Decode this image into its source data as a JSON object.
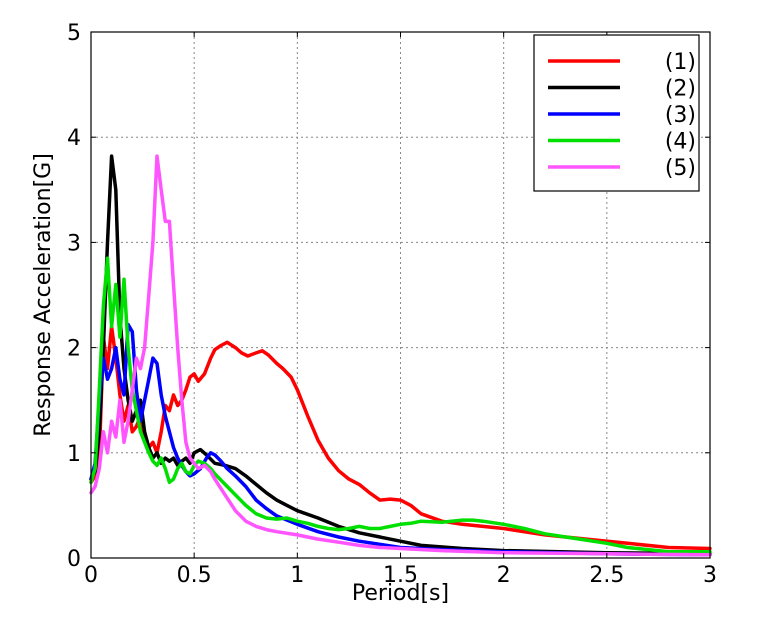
{
  "chart_data": {
    "type": "line",
    "title": "",
    "xlabel": "Period[s]",
    "ylabel": "Response Acceleration[G]",
    "xlim": [
      0,
      3
    ],
    "ylim": [
      0,
      5
    ],
    "xticks": [
      0,
      0.5,
      1,
      1.5,
      2,
      2.5,
      3
    ],
    "xtick_labels": [
      "0",
      "0.5",
      "1",
      "1.5",
      "2",
      "2.5",
      "3"
    ],
    "yticks": [
      0,
      1,
      2,
      3,
      4,
      5
    ],
    "ytick_labels": [
      "0",
      "1",
      "2",
      "3",
      "4",
      "5"
    ],
    "grid": true,
    "legend_position": "top-right",
    "series": [
      {
        "name": "(1)",
        "color": "#ff0000",
        "points": [
          [
            0,
            0.72
          ],
          [
            0.02,
            0.78
          ],
          [
            0.04,
            0.95
          ],
          [
            0.06,
            2.1
          ],
          [
            0.08,
            1.8
          ],
          [
            0.1,
            2.2
          ],
          [
            0.12,
            1.9
          ],
          [
            0.14,
            1.55
          ],
          [
            0.16,
            1.3
          ],
          [
            0.18,
            1.45
          ],
          [
            0.2,
            1.2
          ],
          [
            0.22,
            1.25
          ],
          [
            0.24,
            1.35
          ],
          [
            0.26,
            1.15
          ],
          [
            0.28,
            1.05
          ],
          [
            0.3,
            1.1
          ],
          [
            0.32,
            1.0
          ],
          [
            0.34,
            1.2
          ],
          [
            0.36,
            1.45
          ],
          [
            0.38,
            1.4
          ],
          [
            0.4,
            1.55
          ],
          [
            0.42,
            1.45
          ],
          [
            0.44,
            1.5
          ],
          [
            0.46,
            1.6
          ],
          [
            0.48,
            1.72
          ],
          [
            0.5,
            1.75
          ],
          [
            0.52,
            1.68
          ],
          [
            0.55,
            1.75
          ],
          [
            0.58,
            1.9
          ],
          [
            0.6,
            1.98
          ],
          [
            0.63,
            2.02
          ],
          [
            0.66,
            2.05
          ],
          [
            0.7,
            2.0
          ],
          [
            0.73,
            1.95
          ],
          [
            0.76,
            1.92
          ],
          [
            0.8,
            1.95
          ],
          [
            0.83,
            1.97
          ],
          [
            0.86,
            1.93
          ],
          [
            0.9,
            1.85
          ],
          [
            0.93,
            1.8
          ],
          [
            0.97,
            1.72
          ],
          [
            1.0,
            1.6
          ],
          [
            1.05,
            1.35
          ],
          [
            1.1,
            1.12
          ],
          [
            1.15,
            0.95
          ],
          [
            1.2,
            0.83
          ],
          [
            1.25,
            0.75
          ],
          [
            1.3,
            0.7
          ],
          [
            1.35,
            0.62
          ],
          [
            1.4,
            0.55
          ],
          [
            1.45,
            0.56
          ],
          [
            1.5,
            0.55
          ],
          [
            1.55,
            0.5
          ],
          [
            1.6,
            0.42
          ],
          [
            1.7,
            0.35
          ],
          [
            1.8,
            0.32
          ],
          [
            1.9,
            0.3
          ],
          [
            2.0,
            0.28
          ],
          [
            2.2,
            0.22
          ],
          [
            2.4,
            0.18
          ],
          [
            2.6,
            0.14
          ],
          [
            2.8,
            0.1
          ],
          [
            3.0,
            0.09
          ]
        ]
      },
      {
        "name": "(2)",
        "color": "#000000",
        "points": [
          [
            0,
            0.75
          ],
          [
            0.02,
            0.82
          ],
          [
            0.04,
            1.2
          ],
          [
            0.06,
            2.0
          ],
          [
            0.08,
            3.0
          ],
          [
            0.1,
            3.82
          ],
          [
            0.12,
            3.5
          ],
          [
            0.14,
            2.3
          ],
          [
            0.16,
            1.8
          ],
          [
            0.18,
            1.5
          ],
          [
            0.2,
            1.3
          ],
          [
            0.22,
            1.4
          ],
          [
            0.24,
            1.5
          ],
          [
            0.26,
            1.2
          ],
          [
            0.28,
            1.05
          ],
          [
            0.3,
            0.95
          ],
          [
            0.32,
            1.0
          ],
          [
            0.34,
            0.9
          ],
          [
            0.36,
            0.95
          ],
          [
            0.38,
            0.92
          ],
          [
            0.4,
            0.95
          ],
          [
            0.42,
            0.88
          ],
          [
            0.44,
            0.92
          ],
          [
            0.46,
            0.95
          ],
          [
            0.48,
            0.9
          ],
          [
            0.5,
            1.0
          ],
          [
            0.53,
            1.03
          ],
          [
            0.56,
            0.98
          ],
          [
            0.6,
            0.9
          ],
          [
            0.65,
            0.88
          ],
          [
            0.7,
            0.85
          ],
          [
            0.75,
            0.78
          ],
          [
            0.8,
            0.7
          ],
          [
            0.85,
            0.62
          ],
          [
            0.9,
            0.55
          ],
          [
            0.95,
            0.5
          ],
          [
            1.0,
            0.45
          ],
          [
            1.1,
            0.38
          ],
          [
            1.2,
            0.3
          ],
          [
            1.3,
            0.24
          ],
          [
            1.4,
            0.2
          ],
          [
            1.5,
            0.16
          ],
          [
            1.6,
            0.12
          ],
          [
            1.8,
            0.09
          ],
          [
            2.0,
            0.07
          ],
          [
            2.5,
            0.05
          ],
          [
            3.0,
            0.04
          ]
        ]
      },
      {
        "name": "(3)",
        "color": "#0000ff",
        "points": [
          [
            0,
            0.75
          ],
          [
            0.02,
            0.9
          ],
          [
            0.04,
            1.5
          ],
          [
            0.06,
            1.9
          ],
          [
            0.08,
            1.7
          ],
          [
            0.1,
            1.8
          ],
          [
            0.12,
            2.0
          ],
          [
            0.14,
            1.7
          ],
          [
            0.16,
            1.55
          ],
          [
            0.18,
            2.22
          ],
          [
            0.2,
            2.15
          ],
          [
            0.22,
            1.6
          ],
          [
            0.24,
            1.3
          ],
          [
            0.26,
            1.5
          ],
          [
            0.28,
            1.7
          ],
          [
            0.3,
            1.9
          ],
          [
            0.32,
            1.85
          ],
          [
            0.34,
            1.55
          ],
          [
            0.36,
            1.35
          ],
          [
            0.38,
            1.2
          ],
          [
            0.4,
            1.05
          ],
          [
            0.42,
            0.95
          ],
          [
            0.44,
            0.88
          ],
          [
            0.46,
            0.82
          ],
          [
            0.48,
            0.78
          ],
          [
            0.5,
            0.8
          ],
          [
            0.53,
            0.85
          ],
          [
            0.56,
            0.95
          ],
          [
            0.58,
            1.0
          ],
          [
            0.6,
            0.98
          ],
          [
            0.63,
            0.92
          ],
          [
            0.66,
            0.85
          ],
          [
            0.7,
            0.78
          ],
          [
            0.75,
            0.68
          ],
          [
            0.8,
            0.55
          ],
          [
            0.85,
            0.47
          ],
          [
            0.9,
            0.4
          ],
          [
            1.0,
            0.32
          ],
          [
            1.1,
            0.25
          ],
          [
            1.2,
            0.2
          ],
          [
            1.3,
            0.16
          ],
          [
            1.4,
            0.13
          ],
          [
            1.5,
            0.1
          ],
          [
            1.7,
            0.08
          ],
          [
            2.0,
            0.06
          ],
          [
            2.5,
            0.04
          ],
          [
            3.0,
            0.03
          ]
        ]
      },
      {
        "name": "(4)",
        "color": "#00e000",
        "points": [
          [
            0,
            0.72
          ],
          [
            0.02,
            0.85
          ],
          [
            0.04,
            1.6
          ],
          [
            0.06,
            2.4
          ],
          [
            0.08,
            2.85
          ],
          [
            0.1,
            2.2
          ],
          [
            0.12,
            2.6
          ],
          [
            0.14,
            2.1
          ],
          [
            0.16,
            2.65
          ],
          [
            0.18,
            2.0
          ],
          [
            0.2,
            1.6
          ],
          [
            0.22,
            1.4
          ],
          [
            0.24,
            1.2
          ],
          [
            0.26,
            1.1
          ],
          [
            0.28,
            1.0
          ],
          [
            0.3,
            0.92
          ],
          [
            0.32,
            0.88
          ],
          [
            0.34,
            0.95
          ],
          [
            0.36,
            0.85
          ],
          [
            0.38,
            0.72
          ],
          [
            0.4,
            0.75
          ],
          [
            0.42,
            0.85
          ],
          [
            0.44,
            0.9
          ],
          [
            0.46,
            0.82
          ],
          [
            0.48,
            0.8
          ],
          [
            0.5,
            0.88
          ],
          [
            0.52,
            0.92
          ],
          [
            0.55,
            0.9
          ],
          [
            0.58,
            0.85
          ],
          [
            0.6,
            0.8
          ],
          [
            0.65,
            0.7
          ],
          [
            0.7,
            0.6
          ],
          [
            0.75,
            0.5
          ],
          [
            0.8,
            0.42
          ],
          [
            0.85,
            0.38
          ],
          [
            0.9,
            0.37
          ],
          [
            0.95,
            0.38
          ],
          [
            1.0,
            0.35
          ],
          [
            1.05,
            0.33
          ],
          [
            1.1,
            0.3
          ],
          [
            1.15,
            0.28
          ],
          [
            1.2,
            0.27
          ],
          [
            1.25,
            0.28
          ],
          [
            1.3,
            0.3
          ],
          [
            1.35,
            0.28
          ],
          [
            1.4,
            0.28
          ],
          [
            1.45,
            0.3
          ],
          [
            1.5,
            0.32
          ],
          [
            1.55,
            0.33
          ],
          [
            1.6,
            0.35
          ],
          [
            1.7,
            0.34
          ],
          [
            1.8,
            0.36
          ],
          [
            1.85,
            0.36
          ],
          [
            1.9,
            0.35
          ],
          [
            2.0,
            0.32
          ],
          [
            2.1,
            0.28
          ],
          [
            2.2,
            0.23
          ],
          [
            2.3,
            0.2
          ],
          [
            2.4,
            0.17
          ],
          [
            2.5,
            0.14
          ],
          [
            2.6,
            0.1
          ],
          [
            2.7,
            0.08
          ],
          [
            2.8,
            0.06
          ],
          [
            3.0,
            0.06
          ]
        ]
      },
      {
        "name": "(5)",
        "color": "#ff55ff",
        "points": [
          [
            0,
            0.62
          ],
          [
            0.02,
            0.68
          ],
          [
            0.04,
            0.85
          ],
          [
            0.06,
            1.2
          ],
          [
            0.08,
            1.0
          ],
          [
            0.1,
            1.3
          ],
          [
            0.12,
            1.15
          ],
          [
            0.14,
            1.5
          ],
          [
            0.16,
            1.1
          ],
          [
            0.18,
            1.3
          ],
          [
            0.2,
            1.6
          ],
          [
            0.22,
            1.9
          ],
          [
            0.24,
            1.8
          ],
          [
            0.26,
            2.0
          ],
          [
            0.28,
            2.5
          ],
          [
            0.3,
            3.0
          ],
          [
            0.32,
            3.82
          ],
          [
            0.34,
            3.5
          ],
          [
            0.36,
            3.2
          ],
          [
            0.38,
            3.2
          ],
          [
            0.4,
            2.6
          ],
          [
            0.42,
            2.0
          ],
          [
            0.44,
            1.5
          ],
          [
            0.46,
            1.1
          ],
          [
            0.48,
            0.95
          ],
          [
            0.5,
            0.9
          ],
          [
            0.52,
            0.85
          ],
          [
            0.55,
            0.88
          ],
          [
            0.58,
            0.82
          ],
          [
            0.6,
            0.75
          ],
          [
            0.65,
            0.6
          ],
          [
            0.7,
            0.45
          ],
          [
            0.75,
            0.35
          ],
          [
            0.8,
            0.3
          ],
          [
            0.85,
            0.27
          ],
          [
            0.9,
            0.25
          ],
          [
            1.0,
            0.22
          ],
          [
            1.1,
            0.18
          ],
          [
            1.2,
            0.15
          ],
          [
            1.3,
            0.12
          ],
          [
            1.4,
            0.1
          ],
          [
            1.5,
            0.09
          ],
          [
            1.7,
            0.07
          ],
          [
            2.0,
            0.05
          ],
          [
            2.5,
            0.04
          ],
          [
            3.0,
            0.03
          ]
        ]
      }
    ]
  }
}
